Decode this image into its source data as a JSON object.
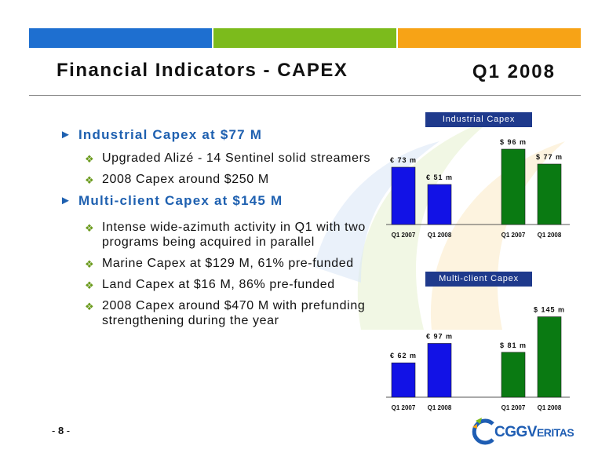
{
  "header": {
    "title": "Financial Indicators - CAPEX",
    "quarter": "Q1 2008"
  },
  "bullets": [
    {
      "heading": "Industrial Capex at $77 M",
      "items": [
        "Upgraded Alizé - 14 Sentinel solid streamers",
        "2008 Capex around $250 M"
      ]
    },
    {
      "heading": "Multi-client Capex at $145 M",
      "items": [
        "Intense wide-azimuth activity in Q1 with two programs being acquired in parallel",
        "Marine Capex at $129 M, 61% pre-funded",
        "Land Capex at $16 M, 86% pre-funded",
        "2008 Capex around $470 M with prefunding strengthening during the year"
      ]
    }
  ],
  "chart_data": [
    {
      "type": "bar",
      "title": "Industrial Capex",
      "categories": [
        "Q1 2007",
        "Q1 2008",
        "Q1 2007",
        "Q1 2008"
      ],
      "values": [
        73,
        51,
        96,
        77
      ],
      "labels": [
        "€ 73 m",
        "€ 51 m",
        "$ 96 m",
        "$ 77 m"
      ],
      "colors": [
        "#1212e6",
        "#1212e6",
        "#0a7a12",
        "#0a7a12"
      ],
      "ylim": [
        0,
        100
      ]
    },
    {
      "type": "bar",
      "title": "Multi-client Capex",
      "categories": [
        "Q1 2007",
        "Q1 2008",
        "Q1 2007",
        "Q1 2008"
      ],
      "values": [
        62,
        97,
        81,
        145
      ],
      "labels": [
        "€ 62 m",
        "€ 97 m",
        "$ 81 m",
        "$ 145 m"
      ],
      "colors": [
        "#1212e6",
        "#1212e6",
        "#0a7a12",
        "#0a7a12"
      ],
      "ylim": [
        0,
        150
      ]
    }
  ],
  "footer": {
    "page_prefix": "- ",
    "page": "8",
    "page_suffix": " -",
    "logo": "CGGVERITAS",
    "logo_main": "CGGV",
    "logo_small": "ERITAS"
  },
  "colors": {
    "strip_blue": "#1e6fd0",
    "strip_green": "#7cbb1c",
    "strip_orange": "#f7a316",
    "heading_blue": "#1e60b0",
    "chart_title_bg": "#1f3a8c"
  }
}
